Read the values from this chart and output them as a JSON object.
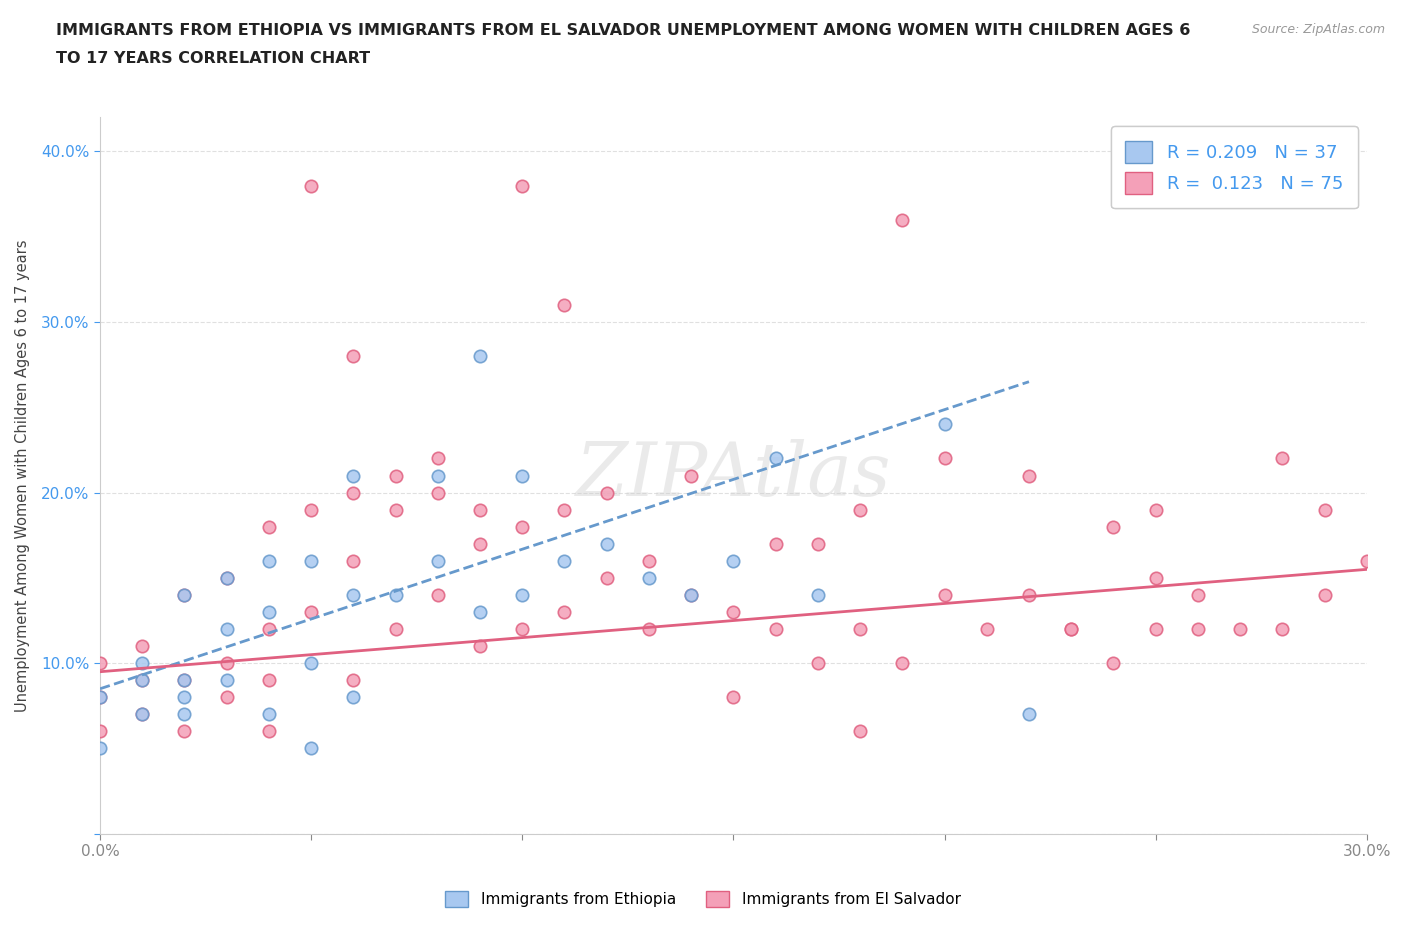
{
  "title_line1": "IMMIGRANTS FROM ETHIOPIA VS IMMIGRANTS FROM EL SALVADOR UNEMPLOYMENT AMONG WOMEN WITH CHILDREN AGES 6",
  "title_line2": "TO 17 YEARS CORRELATION CHART",
  "source": "Source: ZipAtlas.com",
  "ylabel": "Unemployment Among Women with Children Ages 6 to 17 years",
  "xlim": [
    0.0,
    0.3
  ],
  "ylim": [
    0.0,
    0.42
  ],
  "yticks": [
    0.0,
    0.1,
    0.2,
    0.3,
    0.4
  ],
  "ytick_labels": [
    "",
    "10.0%",
    "20.0%",
    "30.0%",
    "40.0%"
  ],
  "xticks": [
    0.0,
    0.05,
    0.1,
    0.15,
    0.2,
    0.25,
    0.3
  ],
  "xtick_labels": [
    "0.0%",
    "",
    "",
    "",
    "",
    "",
    "30.0%"
  ],
  "legend_r1": "R = 0.209   N = 37",
  "legend_r2": "R =  0.123   N = 75",
  "color_ethiopia": "#a8c8f0",
  "color_el_salvador": "#f4a0b8",
  "line_color_ethiopia": "#6699cc",
  "line_color_el_salvador": "#e06080",
  "ethiopia_scatter_x": [
    0.0,
    0.0,
    0.01,
    0.01,
    0.01,
    0.02,
    0.02,
    0.02,
    0.02,
    0.03,
    0.03,
    0.03,
    0.04,
    0.04,
    0.04,
    0.05,
    0.05,
    0.05,
    0.06,
    0.06,
    0.06,
    0.07,
    0.08,
    0.08,
    0.09,
    0.09,
    0.1,
    0.1,
    0.11,
    0.12,
    0.13,
    0.14,
    0.15,
    0.16,
    0.17,
    0.2,
    0.22
  ],
  "ethiopia_scatter_y": [
    0.05,
    0.08,
    0.07,
    0.09,
    0.1,
    0.07,
    0.08,
    0.09,
    0.14,
    0.09,
    0.12,
    0.15,
    0.07,
    0.13,
    0.16,
    0.05,
    0.1,
    0.16,
    0.08,
    0.14,
    0.21,
    0.14,
    0.16,
    0.21,
    0.28,
    0.13,
    0.14,
    0.21,
    0.16,
    0.17,
    0.15,
    0.14,
    0.16,
    0.22,
    0.14,
    0.24,
    0.07
  ],
  "el_salvador_scatter_x": [
    0.0,
    0.0,
    0.0,
    0.01,
    0.01,
    0.01,
    0.02,
    0.02,
    0.02,
    0.03,
    0.03,
    0.03,
    0.04,
    0.04,
    0.04,
    0.04,
    0.05,
    0.05,
    0.06,
    0.06,
    0.06,
    0.07,
    0.07,
    0.08,
    0.08,
    0.09,
    0.09,
    0.1,
    0.1,
    0.11,
    0.11,
    0.12,
    0.13,
    0.13,
    0.14,
    0.15,
    0.15,
    0.16,
    0.17,
    0.18,
    0.19,
    0.2,
    0.21,
    0.22,
    0.23,
    0.24,
    0.25,
    0.25,
    0.26,
    0.27,
    0.28,
    0.29,
    0.29,
    0.3,
    0.22,
    0.23,
    0.24,
    0.25,
    0.26,
    0.28,
    0.17,
    0.18,
    0.19,
    0.1,
    0.11,
    0.05,
    0.06,
    0.07,
    0.08,
    0.09,
    0.12,
    0.14,
    0.16,
    0.18,
    0.2
  ],
  "el_salvador_scatter_y": [
    0.06,
    0.08,
    0.1,
    0.07,
    0.09,
    0.11,
    0.06,
    0.09,
    0.14,
    0.08,
    0.1,
    0.15,
    0.06,
    0.09,
    0.12,
    0.18,
    0.13,
    0.19,
    0.09,
    0.16,
    0.2,
    0.12,
    0.19,
    0.14,
    0.2,
    0.11,
    0.17,
    0.12,
    0.18,
    0.13,
    0.19,
    0.15,
    0.12,
    0.16,
    0.14,
    0.13,
    0.08,
    0.12,
    0.1,
    0.12,
    0.1,
    0.14,
    0.12,
    0.14,
    0.12,
    0.1,
    0.12,
    0.19,
    0.14,
    0.12,
    0.12,
    0.14,
    0.19,
    0.16,
    0.21,
    0.12,
    0.18,
    0.15,
    0.12,
    0.22,
    0.17,
    0.06,
    0.36,
    0.38,
    0.31,
    0.38,
    0.28,
    0.21,
    0.22,
    0.19,
    0.2,
    0.21,
    0.17,
    0.19,
    0.22
  ],
  "ethiopia_trendline_x": [
    0.0,
    0.22
  ],
  "ethiopia_trendline_y": [
    0.085,
    0.265
  ],
  "el_salvador_trendline_x": [
    0.0,
    0.3
  ],
  "el_salvador_trendline_y": [
    0.095,
    0.155
  ],
  "background_color": "#ffffff",
  "grid_color": "#dddddd",
  "watermark_text": "ZIPAtlas",
  "bottom_legend_labels": [
    "Immigrants from Ethiopia",
    "Immigrants from El Salvador"
  ]
}
